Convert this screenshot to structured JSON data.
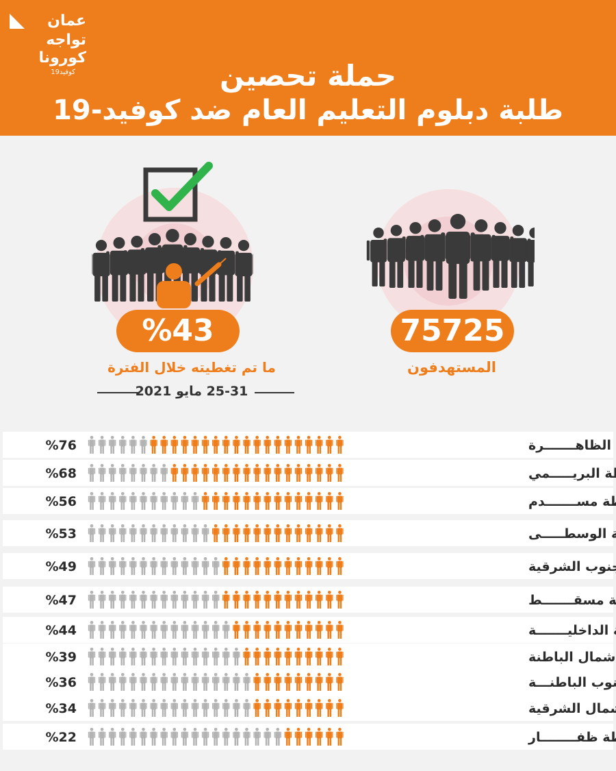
{
  "colors": {
    "orange": "#ee7e1c",
    "dark": "#3a3a3a",
    "grey": "#b3b3b3",
    "halo": "#f6dfe0",
    "halo_inner": "#efc4c8"
  },
  "logo": {
    "line1": "عمان",
    "line2": "تواجه",
    "line3": "كورونا",
    "line4": "كوفيد19"
  },
  "header": {
    "title_line1": "حملة تحصين",
    "title_line2": "طلبة دبلوم التعليم العام ضد كوفيد-19"
  },
  "targeted": {
    "value": "75725",
    "label": "المستهدفون",
    "icon": "crowd-icon"
  },
  "covered": {
    "value": "%43",
    "label": "ما تم تغطيته خلال الفترة",
    "period": "25-31 مايو 2021",
    "icon": "crowd-vaccination-check-icon"
  },
  "chart_data": {
    "type": "pictogram-bar",
    "unit": "%",
    "icons_per_row": 25,
    "categories": [
      "محافظة الظاهـــــــرة",
      "محافظة البريـــــمي",
      "محافظة مســـــــدم",
      "محافظة الوسطـــــى",
      "محافظة جنوب الشرقية",
      "محافظة مسقـــــــط",
      "محافظة الداخليـــــــة",
      "محافظة شمال الباطنة",
      "محافظة جنوب الباطنـــة",
      "محافظة شمال الشرقية",
      "محافظة ظفــــــــار"
    ],
    "values": [
      76,
      68,
      56,
      53,
      49,
      47,
      44,
      39,
      36,
      34,
      22
    ],
    "value_labels": [
      "%76",
      "%68",
      "%56",
      "%53",
      "%49",
      "%47",
      "%44",
      "%39",
      "%36",
      "%34",
      "%22"
    ]
  }
}
